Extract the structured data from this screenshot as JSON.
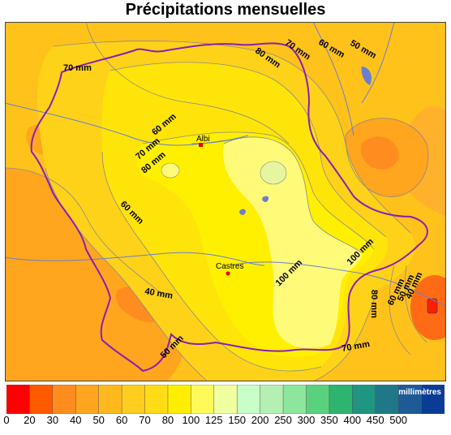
{
  "title": "Précipitations mensuelles",
  "cities": [
    {
      "name": "Albi"
    },
    {
      "name": "Castres"
    }
  ],
  "isolines": {
    "l70_nw": "70 mm",
    "l80_n": "80 mm",
    "l70_n": "70 mm",
    "l60_ne": "60 mm",
    "l50_ne": "50 mm",
    "l60_c": "60 mm",
    "l70_c": "70 mm",
    "l80_c": "80 mm",
    "l60_w": "60 mm",
    "l40_sw": "40 mm",
    "l50_s": "50 mm",
    "l100_c": "100 mm",
    "l100_e": "100 mm",
    "l80_e": "80 mm",
    "l70_s": "70 mm",
    "l60_se": "60 mm",
    "l50_se": "50 mm",
    "l40_se": "40 mm"
  },
  "legend": {
    "unit": "millimètres",
    "ticks": [
      "0",
      "20",
      "30",
      "40",
      "50",
      "60",
      "70",
      "80",
      "100",
      "125",
      "150",
      "200",
      "250",
      "300",
      "350",
      "400",
      "450",
      "500"
    ],
    "colors": [
      "#ff0000",
      "#ff5a00",
      "#ff8c1e",
      "#ffa51e",
      "#ffb91e",
      "#ffcd1e",
      "#ffdc14",
      "#ffee00",
      "#fffa5a",
      "#f0ffa0",
      "#c8ffc8",
      "#b4f0b4",
      "#8ce69b",
      "#5ad27d",
      "#2db46e",
      "#1e9682",
      "#1e7887",
      "#1e5a96",
      "#0a3c96"
    ]
  }
}
